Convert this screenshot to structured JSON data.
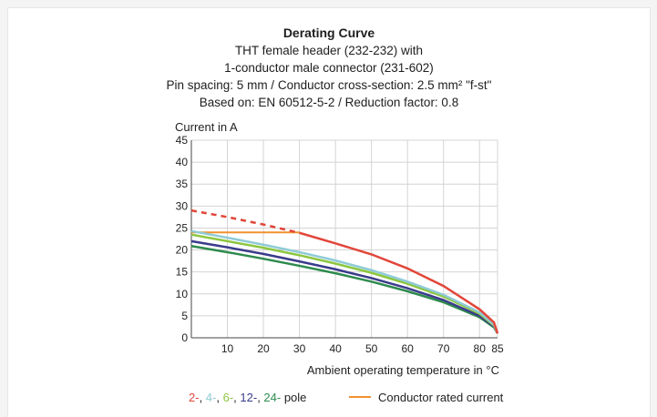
{
  "titles": {
    "line1": "Derating Curve",
    "line2": "THT female header (232-232) with",
    "line3": "1-conductor male connector (231-602)",
    "line4": "Pin spacing: 5 mm / Conductor cross-section: 2.5 mm² \"f-st\"",
    "line5": "Based on: EN 60512-5-2 / Reduction factor: 0.8"
  },
  "chart_data": {
    "type": "line",
    "ylabel": "Current in A",
    "xlabel": "Ambient operating temperature in °C",
    "xlim": [
      0,
      85
    ],
    "ylim": [
      0,
      45
    ],
    "x_ticks": [
      10,
      20,
      30,
      40,
      50,
      60,
      70,
      80,
      85
    ],
    "y_ticks": [
      0,
      5,
      10,
      15,
      20,
      25,
      30,
      35,
      40,
      45
    ],
    "grid": true,
    "legend_placement": "bottom",
    "series": [
      {
        "name": "2-",
        "color": "#e2463a",
        "values_x": [
          0,
          10,
          20,
          30,
          40,
          50,
          60,
          70,
          80,
          84,
          85
        ],
        "values_y": [
          29,
          27.5,
          25.8,
          23.9,
          21.5,
          19,
          15.8,
          11.8,
          6.5,
          3.5,
          1
        ],
        "dashed_until_x": 30
      },
      {
        "name": "4-",
        "color": "#8fcbd6",
        "values_x": [
          0,
          10,
          20,
          30,
          40,
          50,
          60,
          70,
          80,
          84,
          85
        ],
        "values_y": [
          24.3,
          22.8,
          21.2,
          19.5,
          17.6,
          15.4,
          12.8,
          9.8,
          5.8,
          3,
          1
        ]
      },
      {
        "name": "6-",
        "color": "#8dc63f",
        "values_x": [
          0,
          10,
          20,
          30,
          40,
          50,
          60,
          70,
          80,
          84,
          85
        ],
        "values_y": [
          23.5,
          22,
          20.5,
          18.8,
          16.9,
          14.8,
          12.3,
          9.4,
          5.5,
          2.8,
          1
        ]
      },
      {
        "name": "12-",
        "color": "#3b3b8c",
        "values_x": [
          0,
          10,
          20,
          30,
          40,
          50,
          60,
          70,
          80,
          84,
          85
        ],
        "values_y": [
          22,
          20.6,
          19.1,
          17.4,
          15.6,
          13.6,
          11.3,
          8.6,
          5,
          2.6,
          1
        ]
      },
      {
        "name": "24-",
        "color": "#2e8b4e",
        "values_x": [
          0,
          10,
          20,
          30,
          40,
          50,
          60,
          70,
          80,
          84,
          85
        ],
        "values_y": [
          20.9,
          19.5,
          18,
          16.4,
          14.7,
          12.8,
          10.6,
          8.1,
          4.7,
          2.4,
          1
        ]
      }
    ],
    "rated_current": {
      "name": "Conductor rated current",
      "color": "#f0922e",
      "x": [
        0,
        30
      ],
      "y": [
        24,
        24
      ]
    }
  },
  "legend": {
    "series_parts": [
      {
        "text": "2-",
        "color": "#e2463a"
      },
      {
        "text": ", ",
        "color": "#222222"
      },
      {
        "text": "4-",
        "color": "#8fcbd6"
      },
      {
        "text": ", ",
        "color": "#222222"
      },
      {
        "text": "6-",
        "color": "#8dc63f"
      },
      {
        "text": ", ",
        "color": "#222222"
      },
      {
        "text": "12-",
        "color": "#3b3b8c"
      },
      {
        "text": ", ",
        "color": "#222222"
      },
      {
        "text": "24-",
        "color": "#2e8b4e"
      },
      {
        "text": " pole",
        "color": "#222222"
      }
    ],
    "rated_label": "Conductor rated current"
  }
}
